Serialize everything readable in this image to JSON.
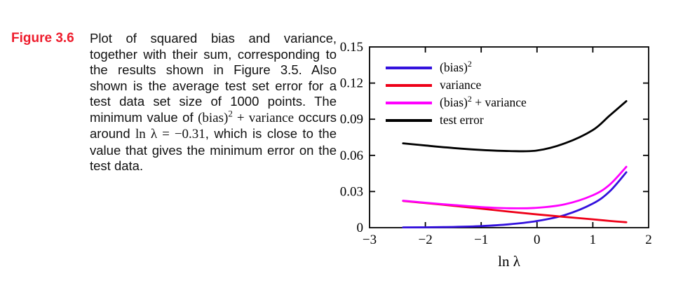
{
  "caption": {
    "label": "Figure 3.6",
    "label_color": "#ee1c2c",
    "text_1": "Plot of squared bias and variance, together with their sum, corresponding to the results shown in Figure 3.5. Also shown is the average test set error for a test data set size of 1000 points. The minimum value of ",
    "math_1_pre": "(bias)",
    "math_1_sup": "2",
    "math_1_post": " + variance",
    "text_2": " occurs around ",
    "math_2": "ln λ = −0.31",
    "text_3": ", which is close to the value that gives the minimum error on the test data."
  },
  "chart_data": {
    "type": "line",
    "title": "",
    "xlabel": "ln λ",
    "ylabel": "",
    "xlim": [
      -3,
      2
    ],
    "ylim": [
      0,
      0.15
    ],
    "xticks": [
      -3,
      -2,
      -1,
      0,
      1,
      2
    ],
    "yticks": [
      0,
      0.03,
      0.06,
      0.09,
      0.12,
      0.15
    ],
    "grid": false,
    "frame": "box",
    "legend_position": "upper-left",
    "x": [
      -2.4,
      -2.0,
      -1.5,
      -1.0,
      -0.5,
      0.0,
      0.5,
      1.0,
      1.3,
      1.6
    ],
    "series": [
      {
        "id": "bias-squared",
        "label_pre": "(bias)",
        "label_sup": "2",
        "label_post": "",
        "color": "#3311dd",
        "values": [
          0.0002,
          0.0003,
          0.0006,
          0.0013,
          0.0028,
          0.0055,
          0.0105,
          0.02,
          0.03,
          0.046
        ]
      },
      {
        "id": "variance",
        "label_pre": "variance",
        "label_sup": "",
        "label_post": "",
        "color": "#ee0018",
        "values": [
          0.0222,
          0.0204,
          0.0182,
          0.0158,
          0.0133,
          0.011,
          0.0089,
          0.0069,
          0.0056,
          0.0045
        ]
      },
      {
        "id": "bias-squared-plus-variance",
        "label_pre": "(bias)",
        "label_sup": "2",
        "label_post": " + variance",
        "color": "#ff00ff",
        "values": [
          0.0224,
          0.0207,
          0.0188,
          0.0171,
          0.0161,
          0.0165,
          0.0194,
          0.0269,
          0.0356,
          0.0505
        ]
      },
      {
        "id": "test-error",
        "label_pre": "test error",
        "label_sup": "",
        "label_post": "",
        "color": "#000000",
        "values": [
          0.07,
          0.0682,
          0.0661,
          0.0645,
          0.0636,
          0.064,
          0.07,
          0.081,
          0.093,
          0.105
        ]
      }
    ]
  }
}
